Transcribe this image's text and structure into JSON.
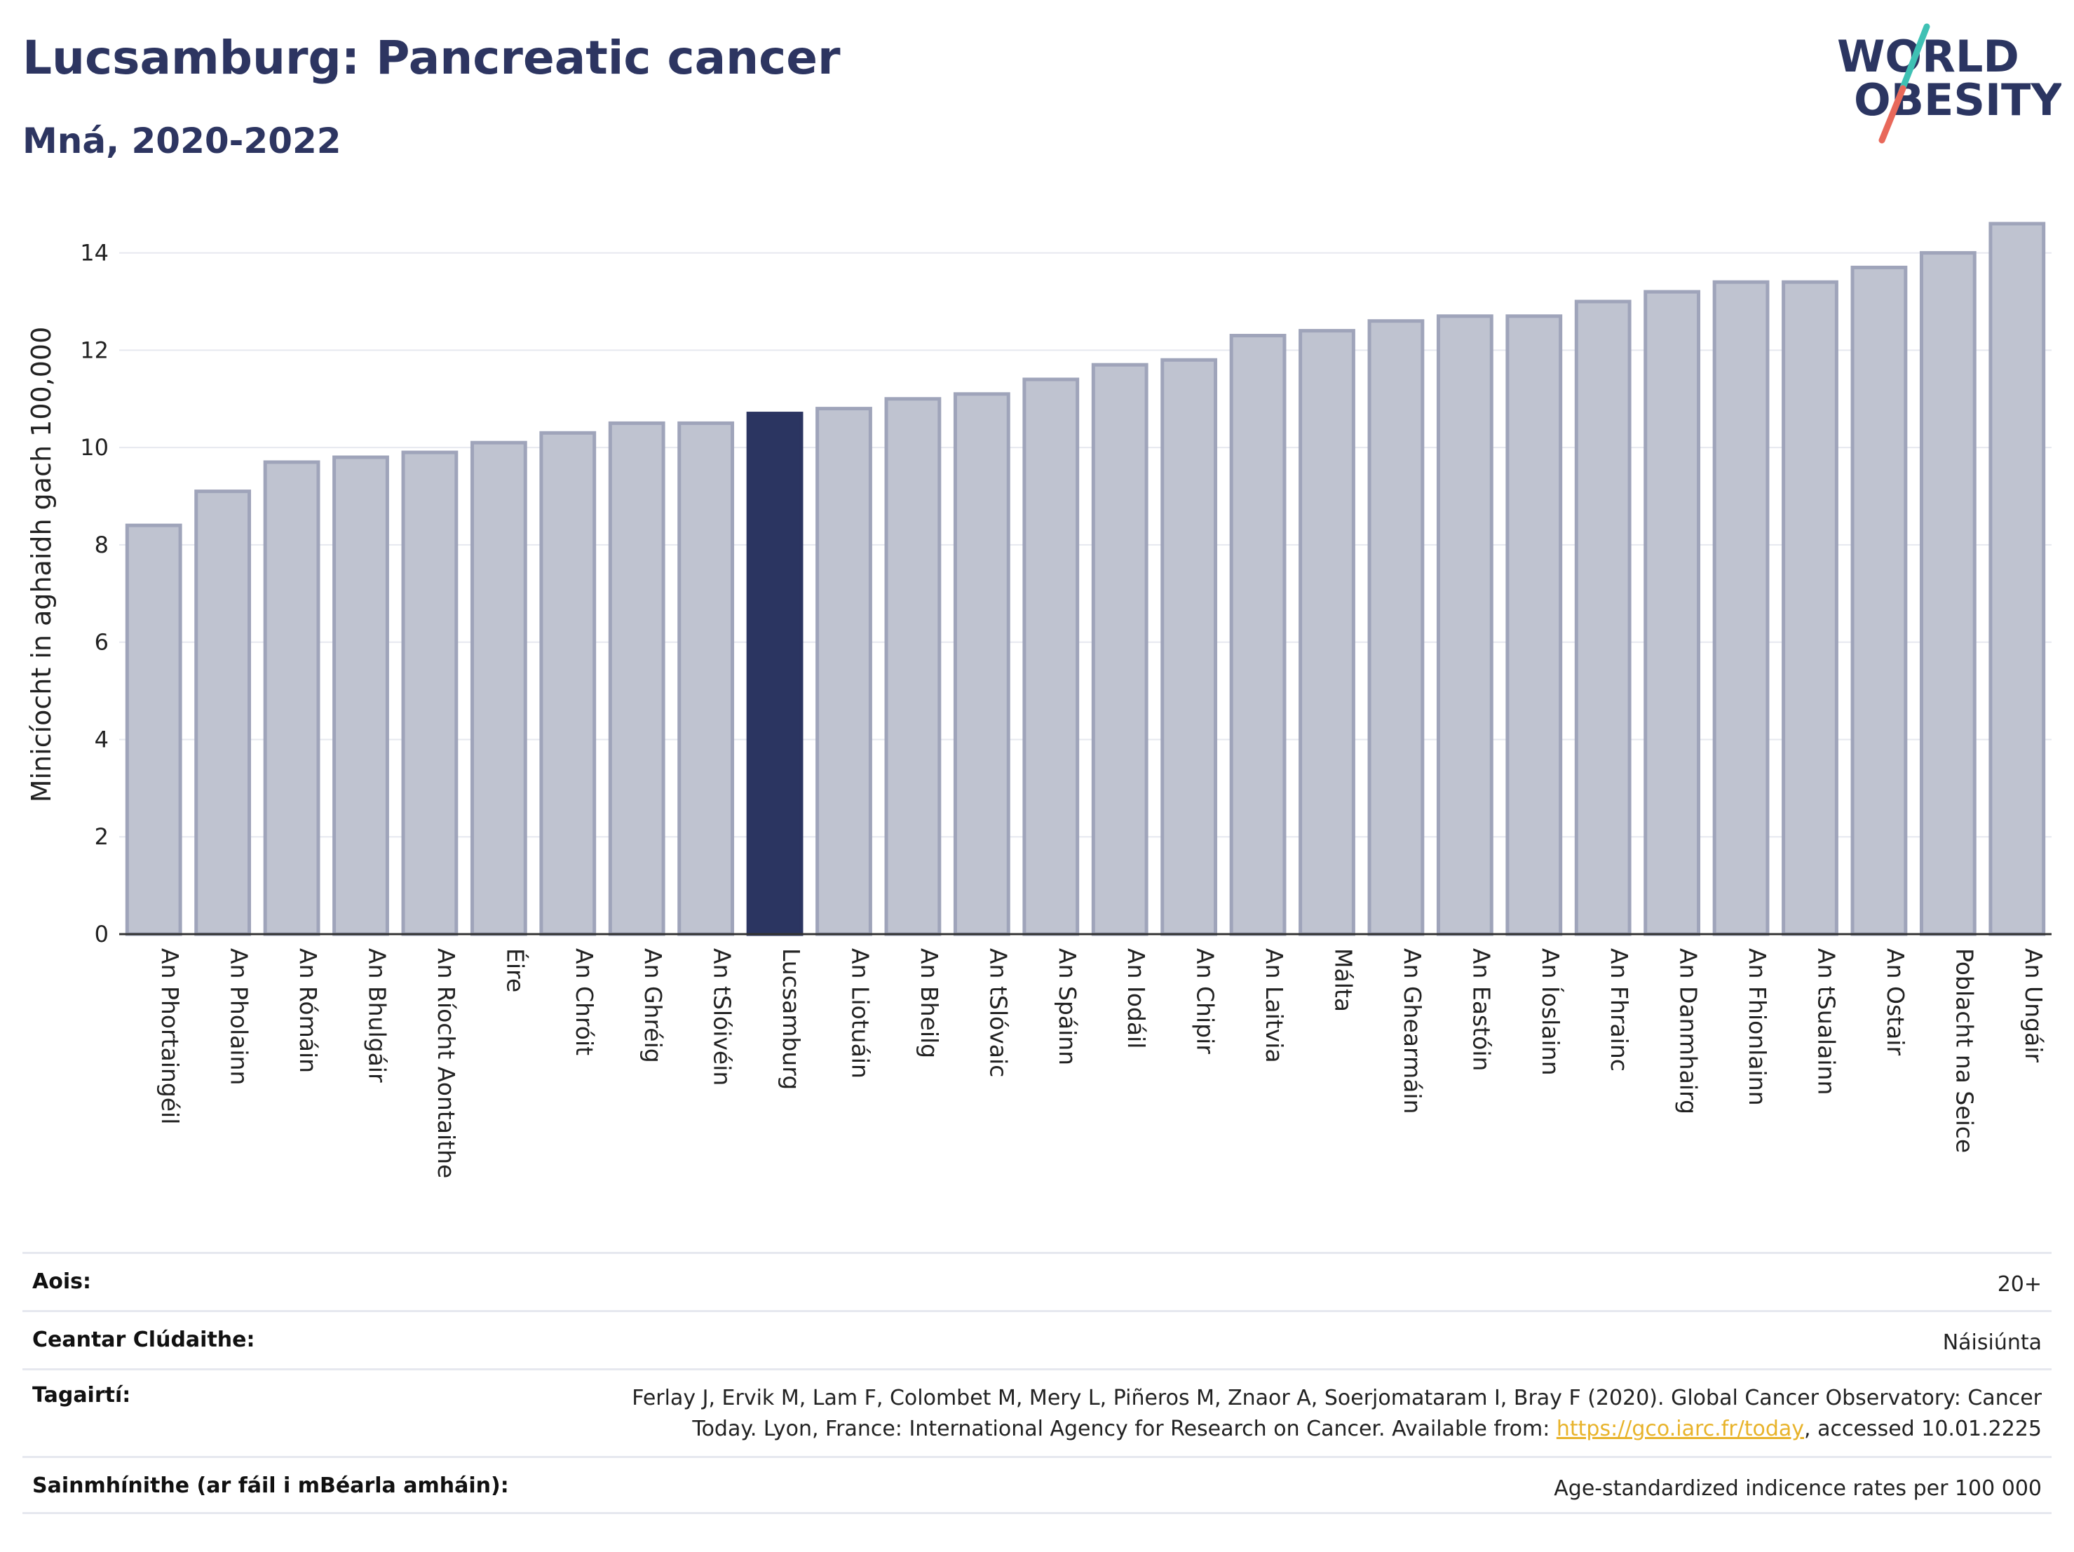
{
  "header": {
    "title": "Lucsamburg: Pancreatic cancer",
    "subtitle": "Mná, 2020-2022"
  },
  "logo": {
    "line1": "WORLD",
    "line2": "OBESITY"
  },
  "colors": {
    "bar": "#bfc3d0",
    "bar_stroke": "#9fa4ba",
    "highlight": "#2b3561",
    "grid": "#e6e8ef",
    "axis": "#333333",
    "logo_text": "#2b3561",
    "logo_teal": "#3fc1b4",
    "logo_red": "#e8685a",
    "link": "#e8b32a"
  },
  "chart_data": {
    "type": "bar",
    "ylabel": "Minicíocht in aghaidh gach 100,000",
    "xlabel": "",
    "ylim": [
      0,
      14.7
    ],
    "yticks": [
      0,
      2,
      4,
      6,
      8,
      10,
      12,
      14
    ],
    "grid": true,
    "highlight_category": "Lucsamburg",
    "categories": [
      "An Phortaingéil",
      "An Pholainn",
      "An Rómáin",
      "An Bhulgáir",
      "An Ríocht Aontaithe",
      "Éire",
      "An Chróit",
      "An Ghréig",
      "An tSlóivéin",
      "Lucsamburg",
      "An Liotuáin",
      "An Bheilg",
      "An tSlóvaic",
      "An Spáinn",
      "An Iodáil",
      "An Chipir",
      "An Laitvia",
      "Málta",
      "An Ghearmáin",
      "An Eastóin",
      "An Íoslainn",
      "An Fhrainc",
      "An Danmhairg",
      "An Fhionlainn",
      "An tSualainn",
      "An Ostair",
      "Poblacht na Seice",
      "An Ungáir"
    ],
    "values": [
      8.4,
      9.1,
      9.7,
      9.8,
      9.9,
      10.1,
      10.3,
      10.5,
      10.5,
      10.7,
      10.8,
      11.0,
      11.1,
      11.4,
      11.7,
      11.8,
      12.3,
      12.4,
      12.6,
      12.7,
      12.7,
      13.0,
      13.2,
      13.4,
      13.4,
      13.7,
      14.0,
      14.6
    ]
  },
  "info": [
    {
      "key": "Aois:",
      "value": "20+"
    },
    {
      "key": "Ceantar Clúdaithe:",
      "value": "Náisiúnta"
    },
    {
      "key": "Tagairtí:",
      "value_line1": "Ferlay J, Ervik M, Lam F, Colombet M, Mery L, Piñeros M, Znaor A, Soerjomataram I, Bray F (2020). Global Cancer Observatory: Cancer",
      "value_line2_pre": "Today. Lyon, France: International Agency for Research on Cancer. Available from: ",
      "link": "https://gco.iarc.fr/today",
      "value_line2_post": ", accessed 10.01.2225"
    },
    {
      "key": "Sainmhínithe (ar fáil i mBéarla amháin):",
      "value": "Age-standardized indicence rates per 100 000"
    }
  ]
}
